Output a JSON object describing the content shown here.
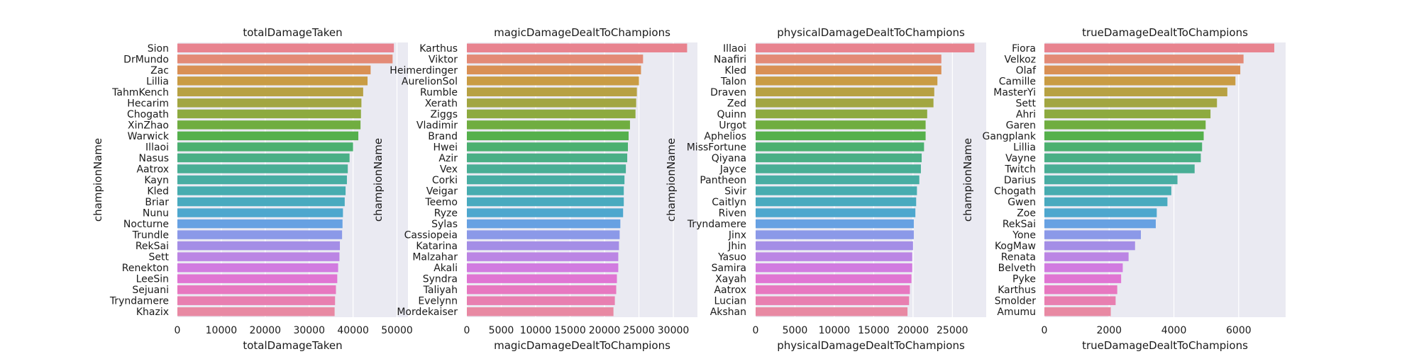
{
  "chart_data": [
    {
      "type": "bar",
      "orientation": "horizontal",
      "title": "totalDamageTaken",
      "xlabel": "totalDamageTaken",
      "ylabel": "championName",
      "xlim": [
        0,
        52500
      ],
      "xticks": [
        0,
        10000,
        20000,
        30000,
        40000,
        50000
      ],
      "grid": true,
      "categories": [
        "Sion",
        "DrMundo",
        "Zac",
        "Lillia",
        "TahmKench",
        "Hecarim",
        "Chogath",
        "XinZhao",
        "Warwick",
        "Illaoi",
        "Nasus",
        "Aatrox",
        "Kayn",
        "Kled",
        "Briar",
        "Nunu",
        "Nocturne",
        "Trundle",
        "RekSai",
        "Sett",
        "Renekton",
        "LeeSin",
        "Sejuani",
        "Tryndamere",
        "Khazix"
      ],
      "values": [
        49300,
        49000,
        44000,
        43300,
        42300,
        41900,
        41800,
        41700,
        41200,
        40000,
        39200,
        38800,
        38600,
        38300,
        38100,
        37700,
        37600,
        37500,
        37000,
        36900,
        36600,
        36400,
        36100,
        35900,
        35800
      ]
    },
    {
      "type": "bar",
      "orientation": "horizontal",
      "title": "magicDamageDealtToChampions",
      "xlabel": "magicDamageDealtToChampions",
      "ylabel": "championName",
      "xlim": [
        0,
        33500
      ],
      "xticks": [
        0,
        5000,
        10000,
        15000,
        20000,
        25000,
        30000
      ],
      "grid": true,
      "categories": [
        "Karthus",
        "Viktor",
        "Heimerdinger",
        "AurelionSol",
        "Rumble",
        "Xerath",
        "Ziggs",
        "Vladimir",
        "Brand",
        "Hwei",
        "Azir",
        "Vex",
        "Corki",
        "Veigar",
        "Teemo",
        "Ryze",
        "Sylas",
        "Cassiopeia",
        "Katarina",
        "Malzahar",
        "Akali",
        "Syndra",
        "Taliyah",
        "Evelynn",
        "Mordekaiser"
      ],
      "values": [
        32000,
        25600,
        25300,
        25000,
        24700,
        24600,
        24500,
        23700,
        23500,
        23400,
        23300,
        23100,
        22900,
        22800,
        22800,
        22700,
        22300,
        22200,
        22100,
        22000,
        22000,
        21800,
        21700,
        21500,
        21300
      ]
    },
    {
      "type": "bar",
      "orientation": "horizontal",
      "title": "physicalDamageDealtToChampions",
      "xlabel": "physicalDamageDealtToChampions",
      "ylabel": "championName",
      "xlim": [
        0,
        29300
      ],
      "xticks": [
        0,
        5000,
        10000,
        15000,
        20000,
        25000
      ],
      "grid": true,
      "categories": [
        "Illaoi",
        "Naafiri",
        "Kled",
        "Talon",
        "Draven",
        "Zed",
        "Quinn",
        "Urgot",
        "Aphelios",
        "MissFortune",
        "Qiyana",
        "Jayce",
        "Pantheon",
        "Sivir",
        "Caitlyn",
        "Riven",
        "Tryndamere",
        "Jinx",
        "Jhin",
        "Yasuo",
        "Samira",
        "Xayah",
        "Aatrox",
        "Lucian",
        "Akshan"
      ],
      "values": [
        27800,
        23600,
        23600,
        23100,
        22700,
        22600,
        21800,
        21600,
        21600,
        21400,
        21100,
        21000,
        20800,
        20500,
        20400,
        20300,
        20100,
        20100,
        20000,
        19900,
        19900,
        19800,
        19600,
        19500,
        19300
      ]
    },
    {
      "type": "bar",
      "orientation": "horizontal",
      "title": "trueDamageDealtToChampions",
      "xlabel": "trueDamageDealtToChampions",
      "ylabel": "championName",
      "xlim": [
        0,
        7450
      ],
      "xticks": [
        0,
        2000,
        4000,
        6000
      ],
      "grid": true,
      "categories": [
        "Fiora",
        "Velkoz",
        "Olaf",
        "Camille",
        "MasterYi",
        "Sett",
        "Ahri",
        "Garen",
        "Gangplank",
        "Lillia",
        "Vayne",
        "Twitch",
        "Darius",
        "Chogath",
        "Gwen",
        "Zoe",
        "RekSai",
        "Yone",
        "KogMaw",
        "Renata",
        "Belveth",
        "Pyke",
        "Karthus",
        "Smolder",
        "Amumu"
      ],
      "values": [
        7100,
        6150,
        6050,
        5900,
        5650,
        5330,
        5130,
        4980,
        4920,
        4870,
        4830,
        4640,
        4110,
        3920,
        3800,
        3470,
        3440,
        2980,
        2800,
        2600,
        2420,
        2370,
        2250,
        2200,
        2050
      ]
    }
  ],
  "colors": {
    "panel_background": "#eaeaf2",
    "grid": "#ffffff",
    "palette": [
      "#e8838f",
      "#e38a76",
      "#d99054",
      "#c99c44",
      "#b7a143",
      "#a2a641",
      "#8daa3f",
      "#70ad40",
      "#55b04c",
      "#4bb070",
      "#4aaf86",
      "#49ae95",
      "#48ada3",
      "#47acb0",
      "#49aabf",
      "#4ea7ce",
      "#67a1e2",
      "#8b99e8",
      "#a48ee6",
      "#bb85e4",
      "#d17be0",
      "#e075d3",
      "#e778c0",
      "#e87fb0",
      "#e889a3"
    ]
  }
}
